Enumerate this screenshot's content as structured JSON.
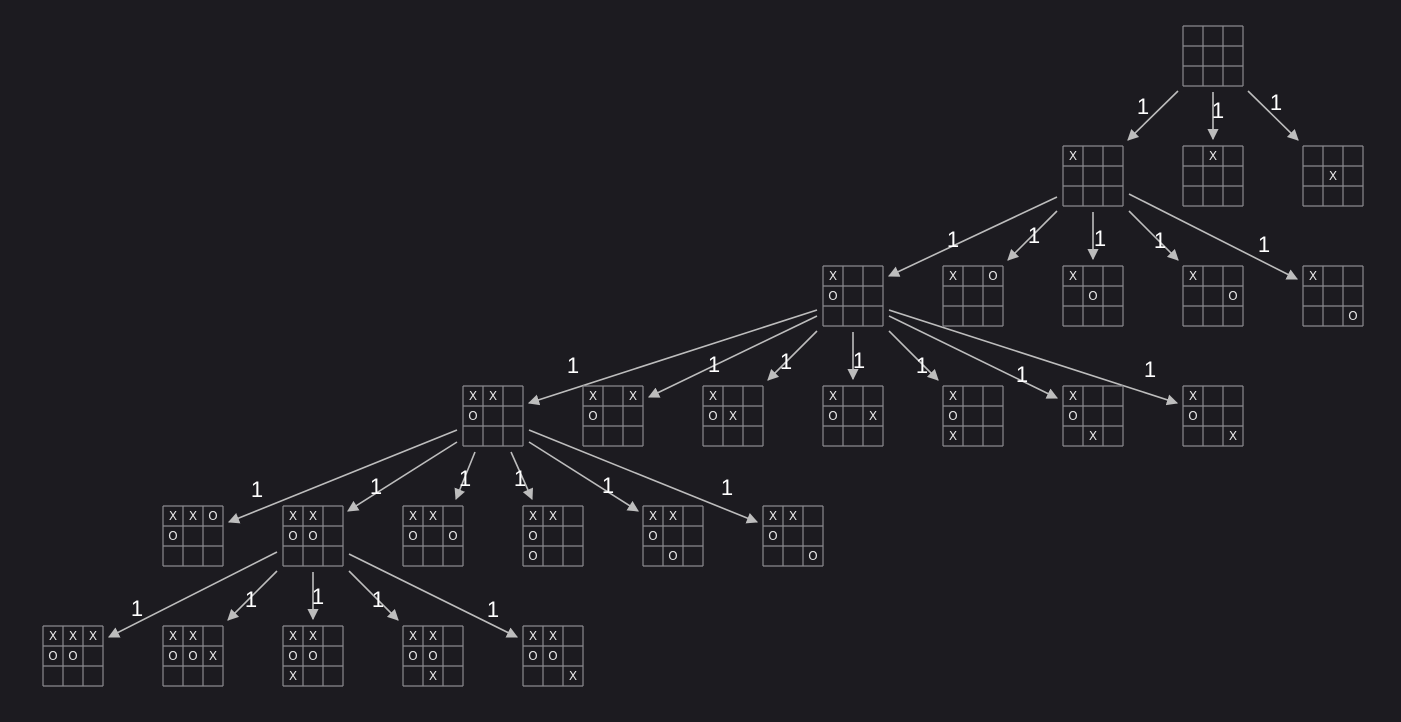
{
  "colors": {
    "background": "#1c1b20",
    "grid": "#8a8a8e",
    "edge": "#bdbdbd",
    "mark": "#e6e6e6",
    "label": "#ffffff"
  },
  "boards": [
    {
      "id": "root",
      "cells": [
        "",
        "",
        "",
        "",
        "",
        "",
        "",
        "",
        ""
      ]
    },
    {
      "id": "a1",
      "cells": [
        "X",
        "",
        "",
        "",
        "",
        "",
        "",
        "",
        ""
      ]
    },
    {
      "id": "a2",
      "cells": [
        "",
        "X",
        "",
        "",
        "",
        "",
        "",
        "",
        ""
      ]
    },
    {
      "id": "a3",
      "cells": [
        "",
        "",
        "",
        "",
        "X",
        "",
        "",
        "",
        ""
      ]
    },
    {
      "id": "b1",
      "cells": [
        "X",
        "",
        "",
        "O",
        "",
        "",
        "",
        "",
        ""
      ]
    },
    {
      "id": "b2",
      "cells": [
        "X",
        "",
        "O",
        "",
        "",
        "",
        "",
        "",
        ""
      ]
    },
    {
      "id": "b3",
      "cells": [
        "X",
        "",
        "",
        "",
        "O",
        "",
        "",
        "",
        ""
      ]
    },
    {
      "id": "b4",
      "cells": [
        "X",
        "",
        "",
        "",
        "",
        "O",
        "",
        "",
        ""
      ]
    },
    {
      "id": "b5",
      "cells": [
        "X",
        "",
        "",
        "",
        "",
        "",
        "",
        "",
        "O"
      ]
    },
    {
      "id": "c1",
      "cells": [
        "X",
        "X",
        "",
        "O",
        "",
        "",
        "",
        "",
        ""
      ]
    },
    {
      "id": "c2",
      "cells": [
        "X",
        "",
        "X",
        "O",
        "",
        "",
        "",
        "",
        ""
      ]
    },
    {
      "id": "c3",
      "cells": [
        "X",
        "",
        "",
        "O",
        "X",
        "",
        "",
        "",
        ""
      ]
    },
    {
      "id": "c4",
      "cells": [
        "X",
        "",
        "",
        "O",
        "",
        "X",
        "",
        "",
        ""
      ]
    },
    {
      "id": "c5",
      "cells": [
        "X",
        "",
        "",
        "O",
        "",
        "",
        "X",
        "",
        ""
      ]
    },
    {
      "id": "c6",
      "cells": [
        "X",
        "",
        "",
        "O",
        "",
        "",
        "",
        "X",
        ""
      ]
    },
    {
      "id": "c7",
      "cells": [
        "X",
        "",
        "",
        "O",
        "",
        "",
        "",
        "",
        "X"
      ]
    },
    {
      "id": "d1",
      "cells": [
        "X",
        "X",
        "O",
        "O",
        "",
        "",
        "",
        "",
        ""
      ]
    },
    {
      "id": "d2",
      "cells": [
        "X",
        "X",
        "",
        "O",
        "O",
        "",
        "",
        "",
        ""
      ]
    },
    {
      "id": "d3",
      "cells": [
        "X",
        "X",
        "",
        "O",
        "",
        "O",
        "",
        "",
        ""
      ]
    },
    {
      "id": "d4",
      "cells": [
        "X",
        "X",
        "",
        "O",
        "",
        "",
        "O",
        "",
        ""
      ]
    },
    {
      "id": "d5",
      "cells": [
        "X",
        "X",
        "",
        "O",
        "",
        "",
        "",
        "O",
        ""
      ]
    },
    {
      "id": "d6",
      "cells": [
        "X",
        "X",
        "",
        "O",
        "",
        "",
        "",
        "",
        "O"
      ]
    },
    {
      "id": "e1",
      "cells": [
        "X",
        "X",
        "X",
        "O",
        "O",
        "",
        "",
        "",
        ""
      ]
    },
    {
      "id": "e2",
      "cells": [
        "X",
        "X",
        "",
        "O",
        "O",
        "X",
        "",
        "",
        ""
      ]
    },
    {
      "id": "e3",
      "cells": [
        "X",
        "X",
        "",
        "O",
        "O",
        "",
        "X",
        "",
        ""
      ]
    },
    {
      "id": "e4",
      "cells": [
        "X",
        "X",
        "",
        "O",
        "O",
        "",
        "",
        "X",
        ""
      ]
    },
    {
      "id": "e5",
      "cells": [
        "X",
        "X",
        "",
        "O",
        "O",
        "",
        "",
        "",
        "X"
      ]
    }
  ],
  "edges": [
    {
      "from": "root",
      "to": "a1",
      "label": "1"
    },
    {
      "from": "root",
      "to": "a2",
      "label": "1"
    },
    {
      "from": "root",
      "to": "a3",
      "label": "1"
    },
    {
      "from": "a1",
      "to": "b1",
      "label": "1"
    },
    {
      "from": "a1",
      "to": "b2",
      "label": "1"
    },
    {
      "from": "a1",
      "to": "b3",
      "label": "1"
    },
    {
      "from": "a1",
      "to": "b4",
      "label": "1"
    },
    {
      "from": "a1",
      "to": "b5",
      "label": "1"
    },
    {
      "from": "b1",
      "to": "c1",
      "label": "1"
    },
    {
      "from": "b1",
      "to": "c2",
      "label": "1"
    },
    {
      "from": "b1",
      "to": "c3",
      "label": "1"
    },
    {
      "from": "b1",
      "to": "c4",
      "label": "1"
    },
    {
      "from": "b1",
      "to": "c5",
      "label": "1"
    },
    {
      "from": "b1",
      "to": "c6",
      "label": "1"
    },
    {
      "from": "b1",
      "to": "c7",
      "label": "1"
    },
    {
      "from": "c1",
      "to": "d1",
      "label": "1"
    },
    {
      "from": "c1",
      "to": "d2",
      "label": "1"
    },
    {
      "from": "c1",
      "to": "d3",
      "label": "1"
    },
    {
      "from": "c1",
      "to": "d4",
      "label": "1"
    },
    {
      "from": "c1",
      "to": "d5",
      "label": "1"
    },
    {
      "from": "c1",
      "to": "d6",
      "label": "1"
    },
    {
      "from": "d2",
      "to": "e1",
      "label": "1"
    },
    {
      "from": "d2",
      "to": "e2",
      "label": "1"
    },
    {
      "from": "d2",
      "to": "e3",
      "label": "1"
    },
    {
      "from": "d2",
      "to": "e4",
      "label": "1"
    },
    {
      "from": "d2",
      "to": "e5",
      "label": "1"
    }
  ]
}
